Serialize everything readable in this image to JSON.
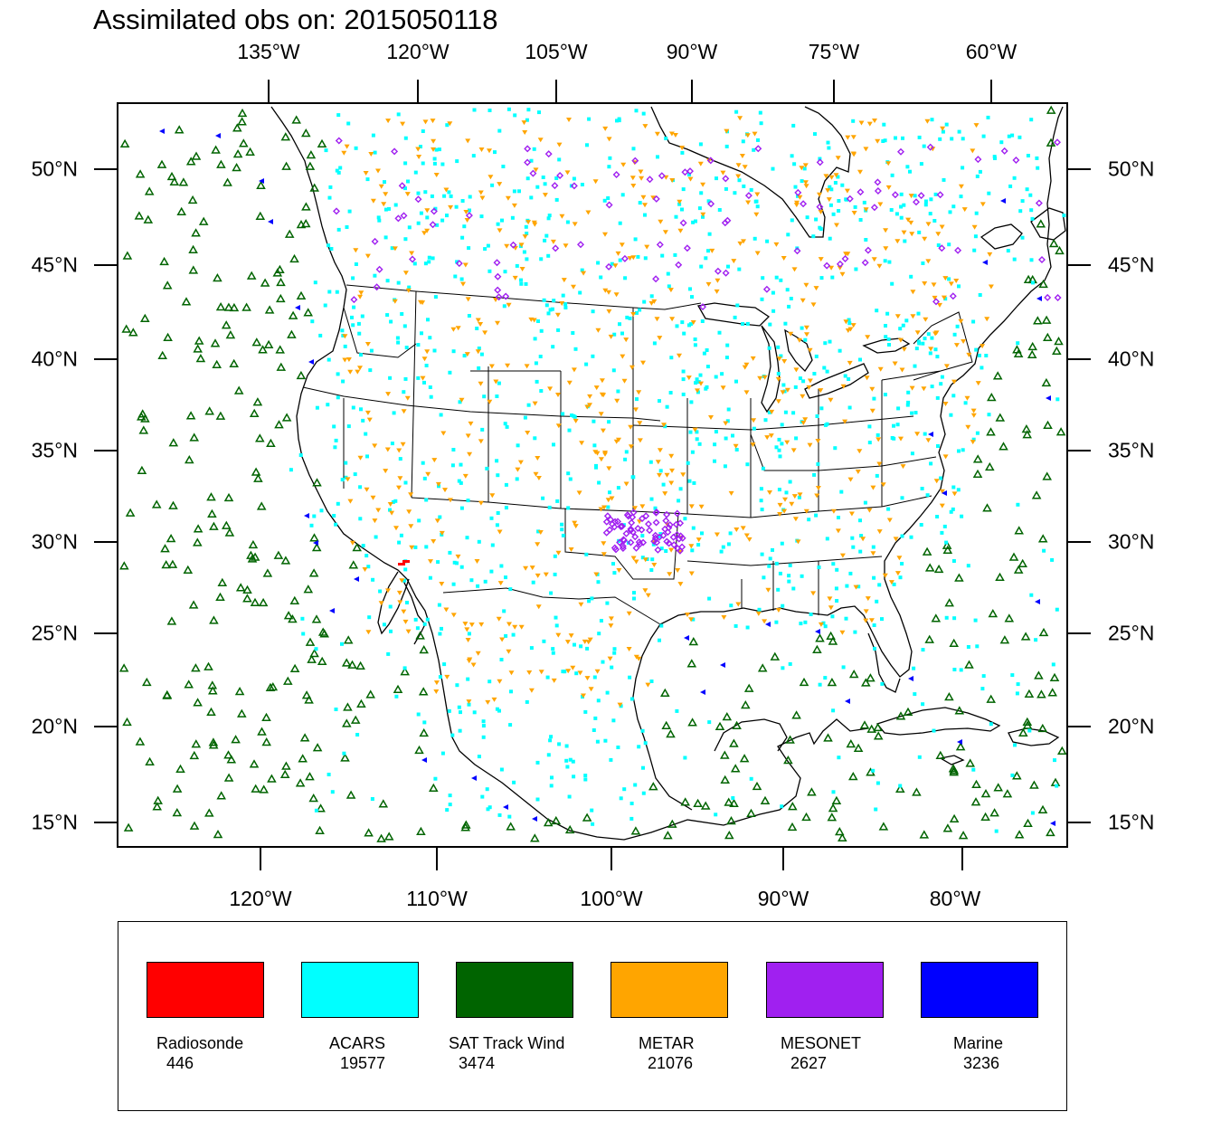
{
  "title": "Assimilated obs on: 2015050118",
  "top_labels": [
    "135°W",
    "120°W",
    "105°W",
    "90°W",
    "75°W",
    "60°W"
  ],
  "bottom_labels": [
    "120°W",
    "110°W",
    "100°W",
    "90°W",
    "80°W"
  ],
  "lat_labels": [
    "50°N",
    "45°N",
    "40°N",
    "35°N",
    "30°N",
    "25°N",
    "20°N",
    "15°N"
  ],
  "legend": [
    {
      "name": "Radiosonde",
      "count": "446",
      "color": "#ff0000"
    },
    {
      "name": "ACARS",
      "count": "19577",
      "color": "#00ffff"
    },
    {
      "name": "SAT Track Wind",
      "count": "3474",
      "color": "#006400"
    },
    {
      "name": "METAR",
      "count": "21076",
      "color": "#ffa500"
    },
    {
      "name": "MESONET",
      "count": "2627",
      "color": "#a020f0"
    },
    {
      "name": "Marine",
      "count": "3236",
      "color": "#0000ff"
    }
  ],
  "colors": {
    "coastline": "#000000",
    "sat_track_wind": "#006400",
    "acars": "#00ffff",
    "metar": "#ffa500",
    "mesonet": "#a020f0",
    "marine": "#0000ff",
    "radiosonde": "#ff0000"
  }
}
